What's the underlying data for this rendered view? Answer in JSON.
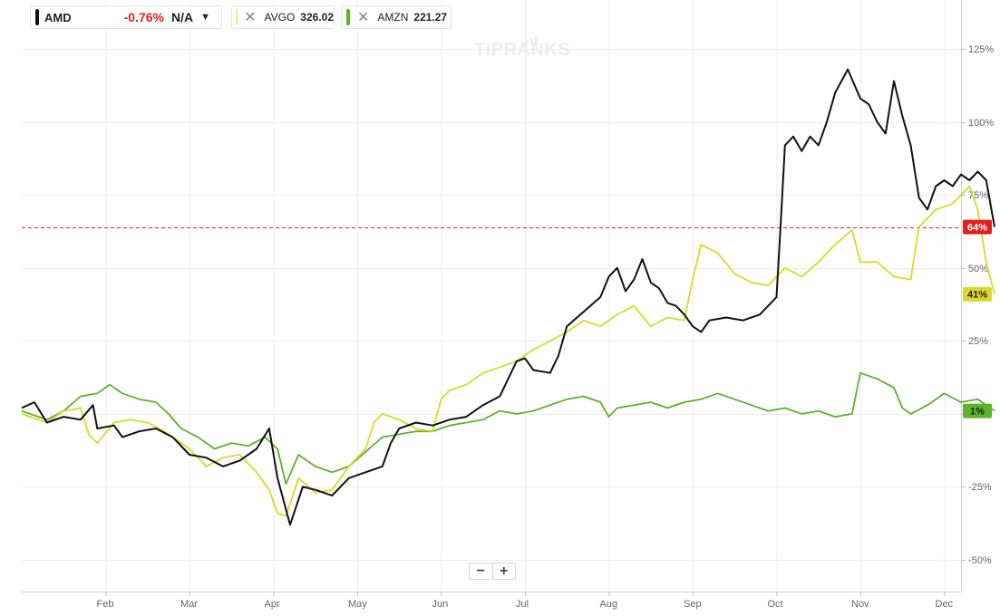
{
  "watermark": "TIPRANKS",
  "legend": {
    "primary": {
      "symbol": "AMD",
      "change": "-0.76%",
      "price": "N/A",
      "color": "#111111",
      "change_color": "#e0201b"
    },
    "comparisons": [
      {
        "symbol": "AVGO",
        "price": "326.02",
        "color": "#d9d92b"
      },
      {
        "symbol": "AMZN",
        "price": "221.27",
        "color": "#5db32d"
      }
    ]
  },
  "zoom": {
    "minus": "−",
    "plus": "+"
  },
  "reference_line": {
    "value": 64,
    "color": "#e0201b"
  },
  "end_badges": [
    {
      "label": "64%",
      "value": 64,
      "bg": "#e0201b",
      "fg": "#ffffff"
    },
    {
      "label": "41%",
      "value": 41,
      "bg": "#d9d92b",
      "fg": "#222222"
    },
    {
      "label": "1%",
      "value": 1,
      "bg": "#5db32d",
      "fg": "#222222"
    }
  ],
  "chart_data": {
    "type": "line",
    "ylim": [
      -55,
      140
    ],
    "y_ticks": [
      -50,
      -25,
      0,
      25,
      50,
      75,
      100,
      125
    ],
    "y_tick_labels": [
      "-50%",
      "-25%",
      "",
      "25%",
      "50%",
      "75%",
      "100%",
      "125%"
    ],
    "x_domain": [
      0,
      11.6
    ],
    "x_months": [
      {
        "label": "Feb",
        "x": 1
      },
      {
        "label": "Mar",
        "x": 2
      },
      {
        "label": "Apr",
        "x": 3
      },
      {
        "label": "May",
        "x": 4
      },
      {
        "label": "Jun",
        "x": 5
      },
      {
        "label": "Jul",
        "x": 6
      },
      {
        "label": "Aug",
        "x": 7
      },
      {
        "label": "Sep",
        "x": 8
      },
      {
        "label": "Oct",
        "x": 9
      },
      {
        "label": "Nov",
        "x": 10
      },
      {
        "label": "Dec",
        "x": 11
      }
    ],
    "grid": true,
    "series": [
      {
        "name": "AMZN",
        "color": "#5db32d",
        "points": [
          [
            0,
            1
          ],
          [
            0.3,
            -2
          ],
          [
            0.5,
            1
          ],
          [
            0.7,
            6
          ],
          [
            0.9,
            7
          ],
          [
            1.05,
            10
          ],
          [
            1.2,
            7
          ],
          [
            1.4,
            5
          ],
          [
            1.6,
            4
          ],
          [
            1.75,
            0
          ],
          [
            1.9,
            -5
          ],
          [
            2.1,
            -8
          ],
          [
            2.3,
            -12
          ],
          [
            2.5,
            -10
          ],
          [
            2.7,
            -11
          ],
          [
            2.9,
            -8
          ],
          [
            3.05,
            -12
          ],
          [
            3.15,
            -24
          ],
          [
            3.3,
            -14
          ],
          [
            3.5,
            -18
          ],
          [
            3.7,
            -20
          ],
          [
            3.9,
            -18
          ],
          [
            4.1,
            -13
          ],
          [
            4.3,
            -8
          ],
          [
            4.5,
            -7
          ],
          [
            4.7,
            -6
          ],
          [
            4.9,
            -6
          ],
          [
            5.1,
            -4
          ],
          [
            5.3,
            -3
          ],
          [
            5.5,
            -2
          ],
          [
            5.7,
            1
          ],
          [
            5.9,
            0
          ],
          [
            6.1,
            1
          ],
          [
            6.3,
            3
          ],
          [
            6.5,
            5
          ],
          [
            6.7,
            6
          ],
          [
            6.9,
            4
          ],
          [
            7.0,
            -1
          ],
          [
            7.1,
            2
          ],
          [
            7.3,
            3
          ],
          [
            7.5,
            4
          ],
          [
            7.7,
            2
          ],
          [
            7.9,
            4
          ],
          [
            8.1,
            5
          ],
          [
            8.3,
            7
          ],
          [
            8.5,
            5
          ],
          [
            8.7,
            3
          ],
          [
            8.9,
            1
          ],
          [
            9.1,
            2
          ],
          [
            9.3,
            0
          ],
          [
            9.5,
            1
          ],
          [
            9.7,
            -1
          ],
          [
            9.9,
            0
          ],
          [
            10.0,
            14
          ],
          [
            10.2,
            12
          ],
          [
            10.4,
            9
          ],
          [
            10.5,
            2
          ],
          [
            10.6,
            0
          ],
          [
            10.8,
            3
          ],
          [
            11.0,
            7
          ],
          [
            11.2,
            4
          ],
          [
            11.4,
            5
          ],
          [
            11.6,
            1
          ]
        ]
      },
      {
        "name": "AVGO",
        "color": "#d9d92b",
        "points": [
          [
            0,
            0
          ],
          [
            0.3,
            -3
          ],
          [
            0.5,
            1
          ],
          [
            0.7,
            2
          ],
          [
            0.8,
            -7
          ],
          [
            0.9,
            -10
          ],
          [
            1.1,
            -3
          ],
          [
            1.3,
            -2
          ],
          [
            1.5,
            -3
          ],
          [
            1.7,
            -6
          ],
          [
            1.9,
            -10
          ],
          [
            2.0,
            -12
          ],
          [
            2.2,
            -18
          ],
          [
            2.4,
            -15
          ],
          [
            2.6,
            -14
          ],
          [
            2.8,
            -20
          ],
          [
            2.95,
            -26
          ],
          [
            3.05,
            -34
          ],
          [
            3.15,
            -35
          ],
          [
            3.3,
            -22
          ],
          [
            3.5,
            -27
          ],
          [
            3.7,
            -26
          ],
          [
            3.9,
            -18
          ],
          [
            4.1,
            -12
          ],
          [
            4.2,
            -3
          ],
          [
            4.3,
            0
          ],
          [
            4.5,
            -2
          ],
          [
            4.7,
            -5
          ],
          [
            4.9,
            -6
          ],
          [
            5.0,
            5
          ],
          [
            5.1,
            8
          ],
          [
            5.3,
            10
          ],
          [
            5.5,
            14
          ],
          [
            5.7,
            16
          ],
          [
            5.9,
            18
          ],
          [
            6.1,
            22
          ],
          [
            6.3,
            25
          ],
          [
            6.5,
            28
          ],
          [
            6.7,
            32
          ],
          [
            6.9,
            30
          ],
          [
            7.1,
            34
          ],
          [
            7.3,
            37
          ],
          [
            7.5,
            30
          ],
          [
            7.7,
            33
          ],
          [
            7.9,
            32
          ],
          [
            8.0,
            46
          ],
          [
            8.1,
            58
          ],
          [
            8.3,
            55
          ],
          [
            8.5,
            48
          ],
          [
            8.7,
            45
          ],
          [
            8.9,
            44
          ],
          [
            9.1,
            50
          ],
          [
            9.3,
            47
          ],
          [
            9.5,
            52
          ],
          [
            9.7,
            58
          ],
          [
            9.9,
            63
          ],
          [
            10.0,
            52
          ],
          [
            10.2,
            52
          ],
          [
            10.4,
            47
          ],
          [
            10.6,
            46
          ],
          [
            10.7,
            64
          ],
          [
            10.9,
            70
          ],
          [
            11.1,
            72
          ],
          [
            11.3,
            78
          ],
          [
            11.4,
            70
          ],
          [
            11.5,
            52
          ],
          [
            11.6,
            41
          ]
        ]
      },
      {
        "name": "AMD",
        "color": "#111111",
        "points": [
          [
            0,
            2
          ],
          [
            0.15,
            4
          ],
          [
            0.3,
            -3
          ],
          [
            0.5,
            -1
          ],
          [
            0.7,
            -2
          ],
          [
            0.85,
            3
          ],
          [
            0.9,
            -5
          ],
          [
            1.1,
            -4
          ],
          [
            1.2,
            -8
          ],
          [
            1.4,
            -6
          ],
          [
            1.6,
            -5
          ],
          [
            1.8,
            -8
          ],
          [
            2.0,
            -14
          ],
          [
            2.2,
            -15
          ],
          [
            2.4,
            -18
          ],
          [
            2.6,
            -16
          ],
          [
            2.8,
            -12
          ],
          [
            2.95,
            -5
          ],
          [
            3.05,
            -22
          ],
          [
            3.2,
            -38
          ],
          [
            3.35,
            -25
          ],
          [
            3.5,
            -26
          ],
          [
            3.7,
            -28
          ],
          [
            3.9,
            -22
          ],
          [
            4.1,
            -20
          ],
          [
            4.3,
            -18
          ],
          [
            4.4,
            -10
          ],
          [
            4.5,
            -5
          ],
          [
            4.7,
            -3
          ],
          [
            4.9,
            -4
          ],
          [
            5.1,
            -2
          ],
          [
            5.3,
            -1
          ],
          [
            5.5,
            3
          ],
          [
            5.7,
            6
          ],
          [
            5.9,
            18
          ],
          [
            6.0,
            19
          ],
          [
            6.1,
            15
          ],
          [
            6.3,
            14
          ],
          [
            6.4,
            20
          ],
          [
            6.5,
            30
          ],
          [
            6.7,
            35
          ],
          [
            6.9,
            40
          ],
          [
            7.0,
            47
          ],
          [
            7.1,
            50
          ],
          [
            7.2,
            42
          ],
          [
            7.3,
            46
          ],
          [
            7.4,
            53
          ],
          [
            7.5,
            45
          ],
          [
            7.6,
            43
          ],
          [
            7.7,
            38
          ],
          [
            7.8,
            37
          ],
          [
            7.9,
            34
          ],
          [
            8.0,
            30
          ],
          [
            8.1,
            28
          ],
          [
            8.2,
            32
          ],
          [
            8.4,
            33
          ],
          [
            8.6,
            32
          ],
          [
            8.8,
            34
          ],
          [
            9.0,
            40
          ],
          [
            9.05,
            65
          ],
          [
            9.1,
            92
          ],
          [
            9.2,
            95
          ],
          [
            9.3,
            90
          ],
          [
            9.4,
            95
          ],
          [
            9.5,
            92
          ],
          [
            9.6,
            100
          ],
          [
            9.7,
            110
          ],
          [
            9.85,
            118
          ],
          [
            10.0,
            108
          ],
          [
            10.1,
            106
          ],
          [
            10.2,
            100
          ],
          [
            10.3,
            96
          ],
          [
            10.4,
            114
          ],
          [
            10.5,
            102
          ],
          [
            10.6,
            92
          ],
          [
            10.7,
            74
          ],
          [
            10.8,
            70
          ],
          [
            10.9,
            78
          ],
          [
            11.0,
            80
          ],
          [
            11.1,
            78
          ],
          [
            11.2,
            82
          ],
          [
            11.3,
            80
          ],
          [
            11.4,
            83
          ],
          [
            11.5,
            80
          ],
          [
            11.55,
            72
          ],
          [
            11.6,
            64
          ]
        ]
      }
    ]
  }
}
